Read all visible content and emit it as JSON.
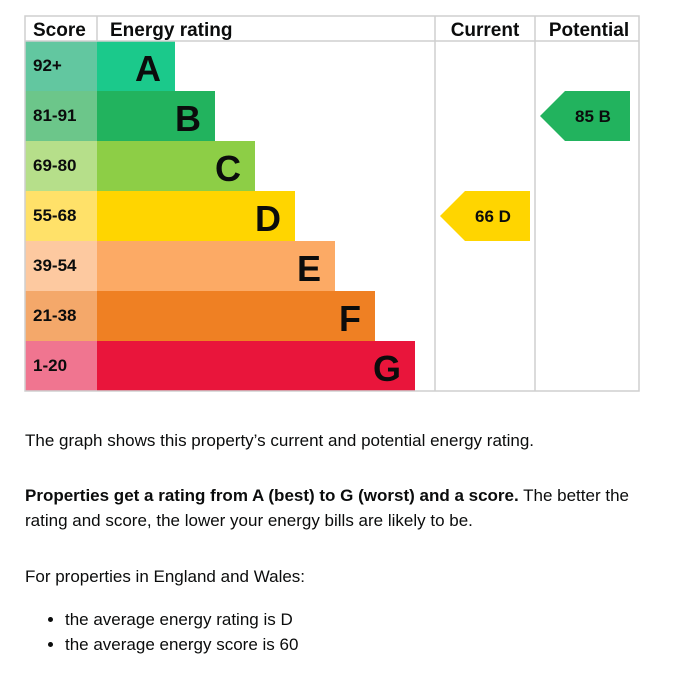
{
  "chart_data": {
    "type": "table",
    "headers": {
      "score": "Score",
      "rating": "Energy rating",
      "current": "Current",
      "potential": "Potential"
    },
    "bands": [
      {
        "letter": "A",
        "range": "92+",
        "color": "#1bc98b",
        "light": "#62c7a0"
      },
      {
        "letter": "B",
        "range": "81-91",
        "color": "#22b35e",
        "light": "#6cc68a"
      },
      {
        "letter": "C",
        "range": "69-80",
        "color": "#8dce46",
        "light": "#b6df8a"
      },
      {
        "letter": "D",
        "range": "55-68",
        "color": "#ffd500",
        "light": "#ffe169"
      },
      {
        "letter": "E",
        "range": "39-54",
        "color": "#fcaa65",
        "light": "#fdc9a0"
      },
      {
        "letter": "F",
        "range": "21-38",
        "color": "#ef8023",
        "light": "#f4a86a"
      },
      {
        "letter": "G",
        "range": "1-20",
        "color": "#e9153b",
        "light": "#f07590"
      }
    ],
    "current": {
      "score": 66,
      "letter": "D",
      "label": "66  D"
    },
    "potential": {
      "score": 85,
      "letter": "B",
      "label": "85  B"
    }
  },
  "text": {
    "p1": "The graph shows this property’s current and potential energy rating.",
    "p2_bold": "Properties get a rating from A (best) to G (worst) and a score.",
    "p2_rest": " The better the rating and score, the lower your energy bills are likely to be.",
    "p3": "For properties in England and Wales:",
    "bullets": [
      "the average energy rating is D",
      "the average energy score is 60"
    ]
  }
}
